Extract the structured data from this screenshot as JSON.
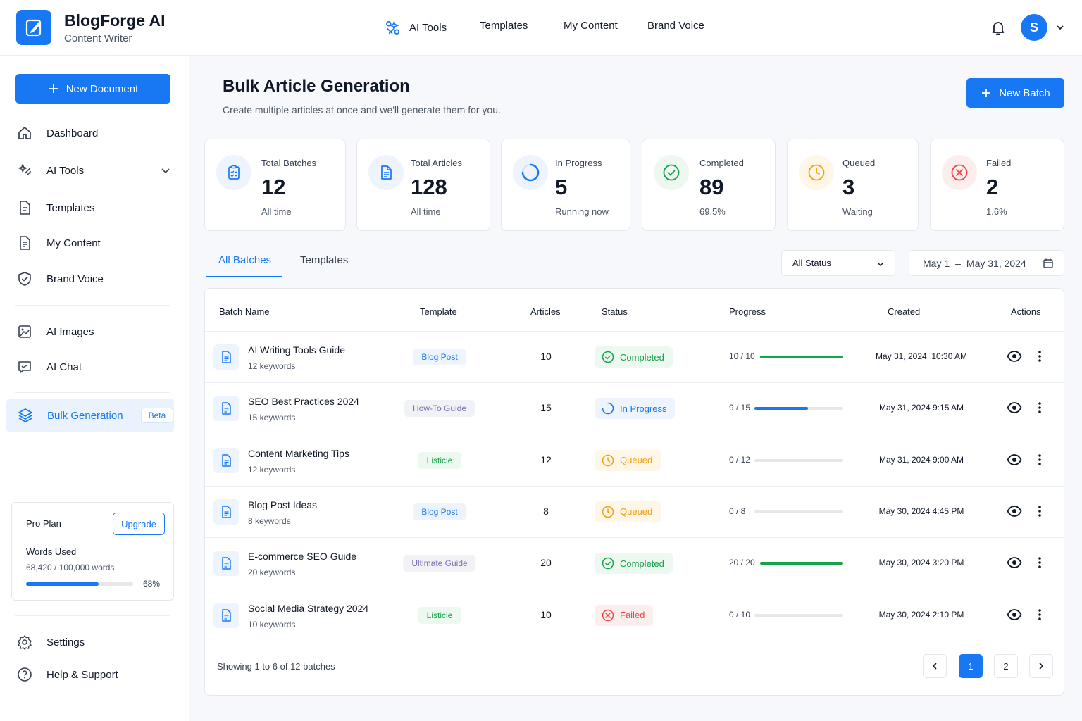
{
  "app": {
    "name": "BlogForge AI",
    "subtitle": "Content Writer"
  },
  "topnav": [
    {
      "label": "AI Tools",
      "icon": "ai-tools-icon"
    },
    {
      "label": "Templates"
    },
    {
      "label": "My Content"
    },
    {
      "label": "Brand Voice"
    }
  ],
  "user": {
    "initial": "S"
  },
  "sidebar": {
    "new_document": "New Document",
    "items": [
      {
        "label": "Dashboard",
        "icon": "home-icon"
      },
      {
        "label": "AI Tools",
        "icon": "ai-tools-icon"
      },
      {
        "label": "Templates",
        "icon": "templates-icon"
      },
      {
        "label": "My Content",
        "icon": "document-icon"
      },
      {
        "label": "Brand Voice",
        "icon": "brand-voice-icon"
      },
      {
        "label": "AI Images",
        "icon": "image-icon"
      },
      {
        "label": "AI Chat",
        "icon": "chat-icon"
      }
    ],
    "active": {
      "label": "Bulk Generation",
      "badge": "Beta",
      "icon": "layers-icon"
    },
    "plan": {
      "name": "Pro Plan",
      "upgrade": "Upgrade",
      "words_label": "Words Used",
      "words_count": "68,420 / 100,000 words",
      "pct_label": "68%",
      "pct": 0.68
    },
    "bottom": [
      {
        "label": "Settings",
        "icon": "settings-icon"
      },
      {
        "label": "Help & Support",
        "icon": "help-icon"
      }
    ]
  },
  "page": {
    "title": "Bulk Article Generation",
    "subtitle": "Create multiple articles at once and we'll generate them for you.",
    "new_batch": "New Batch"
  },
  "stats": [
    {
      "label": "Total Batches",
      "value": "12",
      "foot": "All time",
      "icon": "clipboard-icon",
      "color": "#1877f2"
    },
    {
      "label": "Total Articles",
      "value": "128",
      "foot": "All time",
      "icon": "document-icon",
      "color": "#1877f2"
    },
    {
      "label": "In Progress",
      "value": "5",
      "foot": "Running now",
      "icon": "spinner-icon",
      "color": "#1877f2"
    },
    {
      "label": "Completed",
      "value": "89",
      "foot": "69.5%",
      "icon": "check-circle-icon",
      "color": "#16a34a"
    },
    {
      "label": "Queued",
      "value": "3",
      "foot": "Waiting",
      "icon": "clock-icon",
      "color": "#f59e0b"
    },
    {
      "label": "Failed",
      "value": "2",
      "foot": "1.6%",
      "icon": "x-circle-icon",
      "color": "#ef4444"
    }
  ],
  "tabs": [
    {
      "label": "All Batches"
    },
    {
      "label": "Templates"
    }
  ],
  "filters": {
    "status": "All Status",
    "date_start": "May 1",
    "date_sep": "–",
    "date_end": "May 31, 2024"
  },
  "table": {
    "columns": [
      "Batch Name",
      "Template",
      "Articles",
      "Status",
      "Progress",
      "Created",
      "Actions"
    ],
    "rows": [
      {
        "name": "AI Writing Tools Guide",
        "keywords": "12 keywords",
        "template": "Blog Post",
        "template_kind": "blue",
        "articles": "10",
        "status": "Completed",
        "status_kind": "completed",
        "progress": "10 / 10",
        "done": 10,
        "total": 10,
        "created": "May 31, 2024  10:30 AM"
      },
      {
        "name": "SEO Best Practices 2024",
        "keywords": "15 keywords",
        "template": "How-To Guide",
        "template_kind": "purple",
        "articles": "15",
        "status": "In Progress",
        "status_kind": "progress",
        "progress": "9 / 15",
        "done": 9,
        "total": 15,
        "created": "May 31, 2024 9:15 AM"
      },
      {
        "name": "Content Marketing Tips",
        "keywords": "12 keywords",
        "template": "Listicle",
        "template_kind": "green",
        "articles": "12",
        "status": "Queued",
        "status_kind": "queued",
        "progress": "0 / 12",
        "done": 0,
        "total": 12,
        "created": "May 31, 2024 9:00 AM"
      },
      {
        "name": "Blog Post Ideas",
        "keywords": "8 keywords",
        "template": "Blog Post",
        "template_kind": "blue",
        "articles": "8",
        "status": "Queued",
        "status_kind": "queued",
        "progress": "0 / 8",
        "done": 0,
        "total": 8,
        "created": "May 30, 2024 4:45 PM"
      },
      {
        "name": "E-commerce SEO Guide",
        "keywords": "20 keywords",
        "template": "Ultimate Guide",
        "template_kind": "purple",
        "articles": "20",
        "status": "Completed",
        "status_kind": "completed",
        "progress": "20 / 20",
        "done": 20,
        "total": 20,
        "created": "May 30, 2024 3:20 PM"
      },
      {
        "name": "Social Media Strategy 2024",
        "keywords": "10 keywords",
        "template": "Listicle",
        "template_kind": "green",
        "articles": "10",
        "status": "Failed",
        "status_kind": "failed",
        "progress": "0 / 10",
        "done": 0,
        "total": 10,
        "created": "May 30, 2024 2:10 PM"
      }
    ],
    "showing": "Showing 1 to 6 of 12 batches",
    "pages": [
      "1",
      "2"
    ]
  },
  "colors": {
    "accent": "#1877f2",
    "success": "#16a34a",
    "warning": "#f59e0b",
    "danger": "#ef4444"
  }
}
